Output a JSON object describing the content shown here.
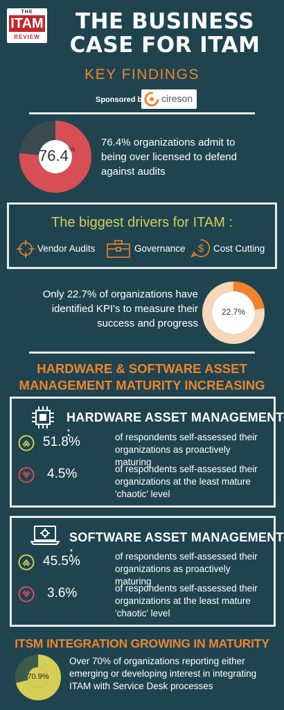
{
  "header": {
    "logo_the": "THE",
    "logo_itam": "ITAM",
    "logo_review": "REVIEW",
    "title_line1": "THE BUSINESS",
    "title_line2": "CASE FOR ITAM",
    "subtitle": "KEY FINDINGS",
    "sponsored_by": "Sponsored by",
    "sponsor_name": "cireson"
  },
  "stat1": {
    "value": "76.4",
    "unit": "%",
    "percent": 76.4,
    "text": "76.4% organizations admit to being over licensed to defend against audits",
    "fill_color": "#d84e55",
    "rest_color": "#3b4b50"
  },
  "drivers": {
    "heading": "The biggest drivers for ITAM :",
    "items": [
      {
        "icon": "crosshair-icon",
        "label": "Vendor Audits"
      },
      {
        "icon": "briefcase-icon",
        "label": "Governance"
      },
      {
        "icon": "dollar-icon",
        "label": "Cost Cutting"
      }
    ]
  },
  "stat2": {
    "value": "22.7%",
    "percent": 22.7,
    "text": "Only 22.7% of organizations have identified KPI's to measure their success and progress",
    "fill_color": "#f0842c",
    "rest_color": "#f6d7b8"
  },
  "maturity": {
    "heading_line1": "HARDWARE & SOFTWARE ASSET",
    "heading_line2": "MANAGEMENT MATURITY INCREASING"
  },
  "hardware": {
    "icon": "chip-icon",
    "heading": "HARDWARE ASSET MANAGEMENT :",
    "rows": [
      {
        "icon": "chevron-up-icon",
        "value": "51.8%",
        "text": "of respondents self-assessed their organizations as proactively maturing"
      },
      {
        "icon": "chevron-down-icon",
        "value": "4.5%",
        "text": "of respondents self-assessed their organizations at the least mature 'chaotic' level"
      }
    ]
  },
  "software": {
    "icon": "laptop-gear-icon",
    "heading": "SOFTWARE ASSET MANAGEMENT :",
    "rows": [
      {
        "icon": "chevron-up-icon",
        "value": "45.5%",
        "text": "of respondents self-assessed their organizations as proactively maturing"
      },
      {
        "icon": "chevron-down-icon",
        "value": "3.6%",
        "text": "of respondents self-assessed their organizations at the least mature 'chaotic' level"
      }
    ]
  },
  "itsm": {
    "heading": "ITSM INTEGRATION GROWING IN MATURITY",
    "value": "70.9%",
    "percent": 70.9,
    "text": "Over 70% of organizations reporting either emerging or developing interest in integrating ITAM with Service Desk processes",
    "fill_color": "#d5cd54",
    "rest_color": "#3d5a4c"
  },
  "colors": {
    "background": "#1f4450",
    "accent": "#f0842c",
    "up": "#d5cd54",
    "down": "#d84e55"
  }
}
